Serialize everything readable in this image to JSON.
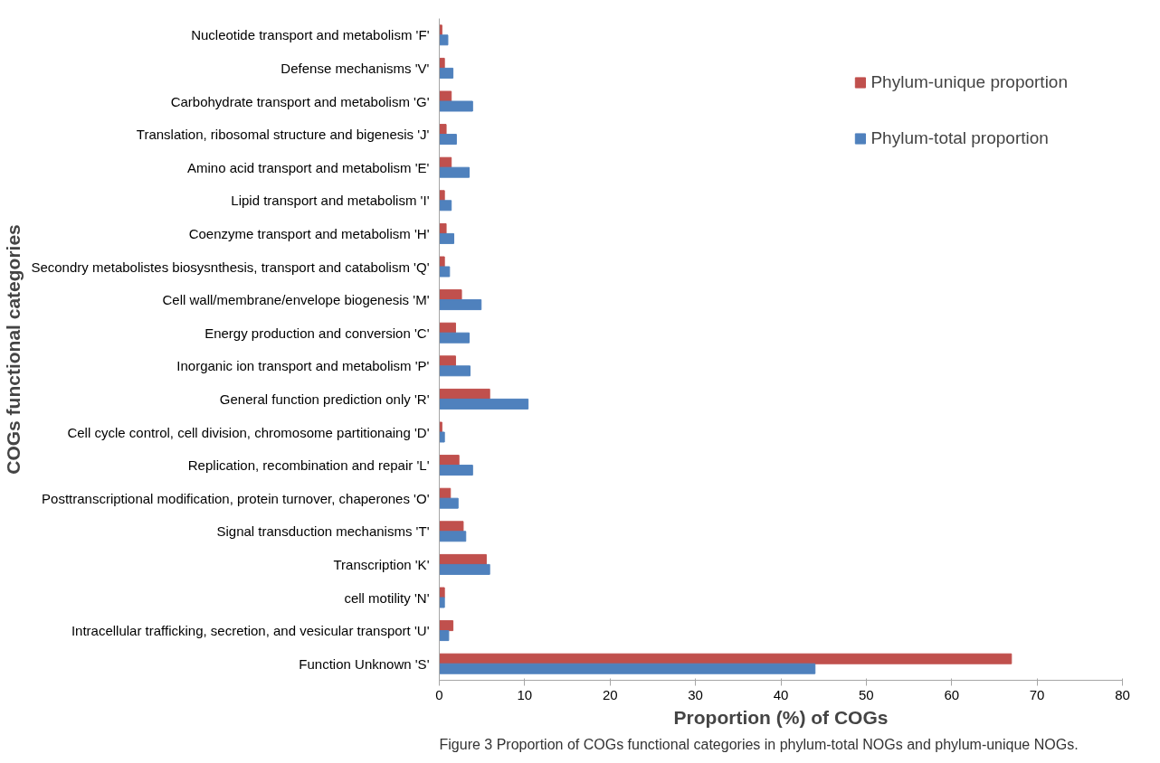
{
  "chart_data": {
    "type": "bar",
    "orientation": "horizontal",
    "xlabel": "Proportion (%) of COGs",
    "ylabel": "COGs functional categories",
    "categories": [
      "Nucleotide transport and metabolism 'F'",
      "Defense mechanisms 'V'",
      "Carbohydrate transport and metabolism 'G'",
      "Translation, ribosomal structure and bigenesis 'J'",
      "Amino acid transport and metabolism 'E'",
      "Lipid transport and metabolism 'I'",
      "Coenzyme transport and metabolism 'H'",
      "Secondry metabolistes biosysnthesis, transport and catabolism 'Q'",
      "Cell wall/membrane/envelope biogenesis 'M'",
      "Energy production and conversion 'C'",
      "Inorganic ion transport and metabolism 'P'",
      "General function prediction only 'R'",
      "Cell cycle control, cell division, chromosome partitionaing 'D'",
      "Replication, recombination and repair 'L'",
      "Posttranscriptional modification, protein turnover, chaperones 'O'",
      "Signal transduction mechanisms 'T'",
      "Transcription 'K'",
      "cell motility 'N'",
      "Intracellular trafficking, secretion, and vesicular transport 'U'",
      "Function Unknown 'S'"
    ],
    "series": [
      {
        "name": "Phylum-unique proportion",
        "color": "#c0504d",
        "values": [
          0.3,
          0.6,
          1.4,
          0.8,
          1.4,
          0.6,
          0.8,
          0.6,
          2.6,
          1.9,
          1.9,
          5.9,
          0.3,
          2.3,
          1.3,
          2.8,
          5.5,
          0.6,
          1.6,
          67
        ]
      },
      {
        "name": "Phylum-total proportion",
        "color": "#4f81bd",
        "values": [
          1.0,
          1.6,
          3.9,
          2.0,
          3.5,
          1.4,
          1.7,
          1.2,
          4.9,
          3.5,
          3.6,
          10.4,
          0.6,
          3.9,
          2.2,
          3.1,
          5.9,
          0.6,
          1.1,
          44
        ]
      }
    ],
    "xlim": [
      0,
      80
    ],
    "xticks": [
      0,
      10,
      20,
      30,
      40,
      50,
      60,
      70,
      80
    ],
    "grid": false,
    "legend": "top right",
    "annotations": [
      "Figure 3 Proportion of COGs functional categories in phylum-total NOGs and phylum-unique NOGs."
    ]
  }
}
